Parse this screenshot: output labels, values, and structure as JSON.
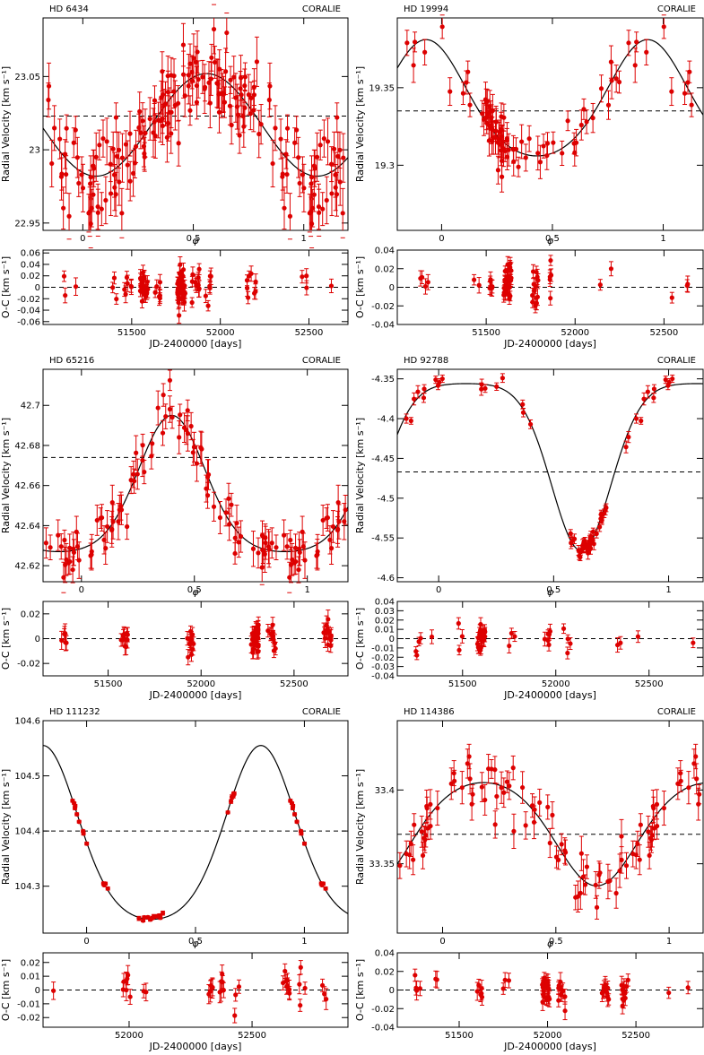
{
  "figure": {
    "background": "#ffffff",
    "point_color": "#dd0000",
    "curve_color": "#000000"
  },
  "stars": [
    {
      "title": "HD 6434",
      "instrument": "CORALIE",
      "rv_panel": {
        "xlabel": "φ",
        "ylabel": "Radial Velocity [km s⁻¹]",
        "xlim": [
          -0.18,
          1.2
        ],
        "ylim": [
          22.945,
          23.09
        ],
        "xticks": [
          0,
          0.5,
          1
        ],
        "xtick_labels": [
          "0",
          "0.5",
          "1"
        ],
        "yticks": [
          22.95,
          23,
          23.05
        ],
        "ytick_labels": [
          "22.95",
          "23",
          "23.05"
        ],
        "gamma": 23.023,
        "model": {
          "min": 22.982,
          "max": 23.052,
          "phase_max": 0.56,
          "asym": 0.0
        },
        "err": 0.013,
        "scatter": 0.016,
        "points_per_cycle": 150,
        "cluster_phases": [],
        "seed": 11
      },
      "oc_panel": {
        "xlabel": "JD-2400000 [days]",
        "ylabel": "O-C [km s⁻¹]",
        "xlim": [
          51000,
          52720
        ],
        "ylim": [
          -0.065,
          0.065
        ],
        "xticks": [
          51500,
          52000,
          52500
        ],
        "xtick_labels": [
          "51500",
          "52000",
          "52500"
        ],
        "yticks": [
          -0.06,
          -0.04,
          -0.02,
          0,
          0.02,
          0.04,
          0.06
        ],
        "ytick_labels": [
          "-0.06",
          "-0.04",
          "-0.02",
          "0",
          "0.02",
          "0.04",
          "0.06"
        ],
        "groups": [
          [
            51130,
            2
          ],
          [
            51180,
            1
          ],
          [
            51400,
            3
          ],
          [
            51480,
            6
          ],
          [
            51570,
            22
          ],
          [
            51640,
            6
          ],
          [
            51780,
            45
          ],
          [
            51860,
            10
          ],
          [
            51930,
            6
          ],
          [
            52160,
            5
          ],
          [
            52210,
            3
          ],
          [
            52470,
            3
          ],
          [
            52640,
            1
          ]
        ],
        "spread": 0.014,
        "err": 0.012,
        "seed": 12
      }
    },
    {
      "title": "HD 19994",
      "instrument": "CORALIE",
      "rv_panel": {
        "xlabel": "φ",
        "ylabel": "Radial Velocity [km s⁻¹]",
        "xlim": [
          -0.2,
          1.18
        ],
        "ylim": [
          19.258,
          19.395
        ],
        "xticks": [
          0,
          0.5,
          1
        ],
        "xtick_labels": [
          "0",
          "0.5",
          "1"
        ],
        "yticks": [
          19.3,
          19.35
        ],
        "ytick_labels": [
          "19.3",
          "19.35"
        ],
        "gamma": 19.335,
        "model": {
          "min": 19.306,
          "max": 19.381,
          "phase_max": 0.93,
          "asym": 0.3
        },
        "err": 0.009,
        "scatter": 0.008,
        "points_per_cycle": 45,
        "cluster_phases": [
          [
            0.25,
            0.05,
            35
          ]
        ],
        "seed": 21
      },
      "oc_panel": {
        "xlabel": "JD-2400000 [days]",
        "ylabel": "O-C [km s⁻¹]",
        "xlim": [
          51000,
          52720
        ],
        "ylim": [
          -0.04,
          0.04
        ],
        "xticks": [
          51500,
          52000,
          52500
        ],
        "xtick_labels": [
          "51500",
          "52000",
          "52500"
        ],
        "yticks": [
          -0.04,
          -0.02,
          0,
          0.02,
          0.04
        ],
        "ytick_labels": [
          "-0.04",
          "-0.02",
          "0",
          "0.02",
          "0.04"
        ],
        "groups": [
          [
            51150,
            3
          ],
          [
            51190,
            1
          ],
          [
            51450,
            2
          ],
          [
            51530,
            6
          ],
          [
            51620,
            28
          ],
          [
            51780,
            14
          ],
          [
            51880,
            5
          ],
          [
            52140,
            1
          ],
          [
            52190,
            1
          ],
          [
            52550,
            1
          ],
          [
            52650,
            2
          ]
        ],
        "spread": 0.009,
        "err": 0.007,
        "seed": 22
      }
    },
    {
      "title": "HD 65216",
      "instrument": "CORALIE",
      "rv_panel": {
        "xlabel": "φ",
        "ylabel": "Radial Velocity [km s⁻¹]",
        "xlim": [
          -0.17,
          1.18
        ],
        "ylim": [
          42.612,
          42.718
        ],
        "xticks": [
          0,
          0.5,
          1
        ],
        "xtick_labels": [
          "0",
          "0.5",
          "1"
        ],
        "yticks": [
          42.62,
          42.64,
          42.66,
          42.68,
          42.7
        ],
        "ytick_labels": [
          "42.62",
          "42.64",
          "42.66",
          "42.68",
          "42.7"
        ],
        "gamma": 42.674,
        "model": {
          "min": 42.627,
          "max": 42.695,
          "phase_max": 0.4,
          "asym": 0.55
        },
        "err": 0.007,
        "scatter": 0.006,
        "points_per_cycle": 90,
        "cluster_phases": [],
        "seed": 31
      },
      "oc_panel": {
        "xlabel": "JD-2400000 [days]",
        "ylabel": "O-C [km s⁻¹]",
        "xlim": [
          51150,
          52790
        ],
        "ylim": [
          -0.03,
          0.03
        ],
        "xticks": [
          51500,
          52000,
          52500
        ],
        "xtick_labels": [
          "51500",
          "52000",
          "52500"
        ],
        "yticks": [
          -0.02,
          0,
          0.02
        ],
        "ytick_labels": [
          "-0.02",
          "0",
          "0.02"
        ],
        "groups": [
          [
            51260,
            6
          ],
          [
            51590,
            10
          ],
          [
            51940,
            12
          ],
          [
            52290,
            30
          ],
          [
            52380,
            10
          ],
          [
            52680,
            14
          ]
        ],
        "spread": 0.006,
        "err": 0.006,
        "seed": 32
      }
    },
    {
      "title": "HD 92788",
      "instrument": "CORALIE",
      "rv_panel": {
        "xlabel": "φ",
        "ylabel": "Radial Velocity [km s⁻¹]",
        "xlim": [
          -0.18,
          1.15
        ],
        "ylim": [
          -4.605,
          -4.338
        ],
        "xticks": [
          0,
          0.5,
          1
        ],
        "xtick_labels": [
          "0",
          "0.5",
          "1"
        ],
        "yticks": [
          -4.6,
          -4.55,
          -4.5,
          -4.45,
          -4.4,
          -4.35
        ],
        "ytick_labels": [
          "-4.6",
          "-4.55",
          "-4.5",
          "-4.45",
          "-4.4",
          "-4.35"
        ],
        "gamma": -4.467,
        "model": {
          "min": -4.566,
          "max": -4.356,
          "phase_max": 0.12,
          "asym": -0.75
        },
        "err": 0.006,
        "scatter": 0.007,
        "points_per_cycle": 25,
        "cluster_phases": [
          [
            0.65,
            0.08,
            35
          ]
        ],
        "seed": 41
      },
      "oc_panel": {
        "xlabel": "JD-2400000 [days]",
        "ylabel": "O-C [km s⁻¹]",
        "xlim": [
          51150,
          52790
        ],
        "ylim": [
          -0.04,
          0.04
        ],
        "xticks": [
          51500,
          52000,
          52500
        ],
        "xtick_labels": [
          "51500",
          "52000",
          "52500"
        ],
        "yticks": [
          -0.04,
          -0.03,
          -0.02,
          -0.01,
          0,
          0.01,
          0.02,
          0.03,
          0.04
        ],
        "ytick_labels": [
          "-0.04",
          "-0.03",
          "-0.02",
          "-0.01",
          "0",
          "0.01",
          "0.02",
          "0.03",
          "0.04"
        ],
        "groups": [
          [
            51260,
            4
          ],
          [
            51350,
            1
          ],
          [
            51480,
            3
          ],
          [
            51600,
            24
          ],
          [
            51760,
            3
          ],
          [
            51960,
            6
          ],
          [
            52060,
            4
          ],
          [
            52340,
            2
          ],
          [
            52450,
            1
          ],
          [
            52730,
            1
          ]
        ],
        "spread": 0.007,
        "err": 0.006,
        "seed": 42
      }
    },
    {
      "title": "HD 111232",
      "instrument": "CORALIE",
      "rv_panel": {
        "xlabel": "φ",
        "ylabel": "Radial Velocity [km s⁻¹]",
        "xlim": [
          -0.2,
          1.2
        ],
        "ylim": [
          104.215,
          104.6
        ],
        "xticks": [
          0,
          0.5,
          1
        ],
        "xtick_labels": [
          "0",
          "0.5",
          "1"
        ],
        "yticks": [
          104.3,
          104.4,
          104.5,
          104.6
        ],
        "ytick_labels": [
          "104.3",
          "104.4",
          "104.5",
          "104.6"
        ],
        "gamma": 104.4,
        "model": {
          "min": 104.24,
          "max": 104.555,
          "phase_max": 0.8,
          "asym": 0.45
        },
        "err": 0.003,
        "scatter": 0.003,
        "points_per_cycle": 0,
        "cluster_phases": [
          [
            -0.04,
            0.05,
            9
          ],
          [
            0.08,
            0.02,
            4
          ],
          [
            0.29,
            0.06,
            12
          ],
          [
            0.66,
            0.03,
            6
          ]
        ],
        "seed": 51
      },
      "oc_panel": {
        "xlabel": "JD-2400000 [days]",
        "ylabel": "O-C [km s⁻¹]",
        "xlim": [
          51650,
          52890
        ],
        "ylim": [
          -0.027,
          0.027
        ],
        "xticks": [
          52000,
          52500
        ],
        "xtick_labels": [
          "52000",
          "52500"
        ],
        "yticks": [
          -0.02,
          -0.01,
          0,
          0.01,
          0.02
        ],
        "ytick_labels": [
          "-0.02",
          "-0.01",
          "0",
          "0.01",
          "0.02"
        ],
        "groups": [
          [
            51700,
            1
          ],
          [
            51990,
            7
          ],
          [
            52070,
            2
          ],
          [
            52330,
            6
          ],
          [
            52380,
            6
          ],
          [
            52440,
            3
          ],
          [
            52640,
            8
          ],
          [
            52700,
            4
          ],
          [
            52800,
            3
          ]
        ],
        "spread": 0.006,
        "err": 0.006,
        "seed": 52
      }
    },
    {
      "title": "HD 114386",
      "instrument": "CORALIE",
      "rv_panel": {
        "xlabel": "φ",
        "ylabel": "Radial Velocity [km s⁻¹]",
        "xlim": [
          -0.2,
          1.15
        ],
        "ylim": [
          33.303,
          33.447
        ],
        "xticks": [
          0,
          0.5,
          1
        ],
        "xtick_labels": [
          "0",
          "0.5",
          "1"
        ],
        "yticks": [
          33.35,
          33.4
        ],
        "ytick_labels": [
          "33.35",
          "33.4"
        ],
        "gamma": 33.37,
        "model": {
          "min": 33.335,
          "max": 33.405,
          "phase_max": 0.18,
          "asym": -0.3
        },
        "err": 0.009,
        "scatter": 0.012,
        "points_per_cycle": 70,
        "cluster_phases": [],
        "seed": 61
      },
      "oc_panel": {
        "xlabel": "JD-2400000 [days]",
        "ylabel": "O-C [km s⁻¹]",
        "xlim": [
          51150,
          52880
        ],
        "ylim": [
          -0.04,
          0.04
        ],
        "xticks": [
          51500,
          52000,
          52500
        ],
        "xtick_labels": [
          "51500",
          "52000",
          "52500"
        ],
        "yticks": [
          -0.04,
          -0.02,
          0,
          0.02,
          0.04
        ],
        "ytick_labels": [
          "-0.04",
          "-0.02",
          "0",
          "0.02",
          "0.04"
        ],
        "groups": [
          [
            51270,
            4
          ],
          [
            51380,
            2
          ],
          [
            51620,
            6
          ],
          [
            51770,
            3
          ],
          [
            51990,
            20
          ],
          [
            52080,
            10
          ],
          [
            52330,
            10
          ],
          [
            52440,
            12
          ],
          [
            52680,
            1
          ],
          [
            52790,
            1
          ]
        ],
        "spread": 0.009,
        "err": 0.008,
        "seed": 62
      }
    }
  ],
  "chart_data": [
    {
      "type": "scatter",
      "title": "HD 6434",
      "xlabel": "φ",
      "ylabel": "Radial Velocity [km s⁻¹]",
      "xlim": [
        -0.18,
        1.2
      ],
      "ylim": [
        22.945,
        23.09
      ],
      "series": [
        {
          "name": "Keplerian fit",
          "min": 22.982,
          "max": 23.052
        },
        {
          "name": "systemic velocity",
          "values": [
            23.023
          ]
        }
      ]
    },
    {
      "type": "scatter",
      "title": "HD 6434",
      "xlabel": "JD-2400000 [days]",
      "ylabel": "O-C [km s⁻¹]",
      "xlim": [
        51000,
        52720
      ],
      "ylim": [
        -0.065,
        0.065
      ]
    },
    {
      "type": "scatter",
      "title": "HD 19994",
      "xlabel": "φ",
      "ylabel": "Radial Velocity [km s⁻¹]",
      "xlim": [
        -0.2,
        1.18
      ],
      "ylim": [
        19.258,
        19.395
      ],
      "series": [
        {
          "name": "Keplerian fit",
          "min": 19.306,
          "max": 19.381
        },
        {
          "name": "systemic velocity",
          "values": [
            19.335
          ]
        }
      ]
    },
    {
      "type": "scatter",
      "title": "HD 19994",
      "xlabel": "JD-2400000 [days]",
      "ylabel": "O-C [km s⁻¹]",
      "xlim": [
        51000,
        52720
      ],
      "ylim": [
        -0.04,
        0.04
      ]
    },
    {
      "type": "scatter",
      "title": "HD 65216",
      "xlabel": "φ",
      "ylabel": "Radial Velocity [km s⁻¹]",
      "xlim": [
        -0.17,
        1.18
      ],
      "ylim": [
        42.612,
        42.718
      ],
      "series": [
        {
          "name": "Keplerian fit",
          "min": 42.627,
          "max": 42.695
        },
        {
          "name": "systemic velocity",
          "values": [
            42.674
          ]
        }
      ]
    },
    {
      "type": "scatter",
      "title": "HD 65216",
      "xlabel": "JD-2400000 [days]",
      "ylabel": "O-C [km s⁻¹]",
      "xlim": [
        51150,
        52790
      ],
      "ylim": [
        -0.03,
        0.03
      ]
    },
    {
      "type": "scatter",
      "title": "HD 92788",
      "xlabel": "φ",
      "ylabel": "Radial Velocity [km s⁻¹]",
      "xlim": [
        -0.18,
        1.15
      ],
      "ylim": [
        -4.605,
        -4.338
      ],
      "series": [
        {
          "name": "Keplerian fit",
          "min": -4.566,
          "max": -4.356
        },
        {
          "name": "systemic velocity",
          "values": [
            -4.467
          ]
        }
      ]
    },
    {
      "type": "scatter",
      "title": "HD 92788",
      "xlabel": "JD-2400000 [days]",
      "ylabel": "O-C [km s⁻¹]",
      "xlim": [
        51150,
        52790
      ],
      "ylim": [
        -0.04,
        0.04
      ]
    },
    {
      "type": "scatter",
      "title": "HD 111232",
      "xlabel": "φ",
      "ylabel": "Radial Velocity [km s⁻¹]",
      "xlim": [
        -0.2,
        1.2
      ],
      "ylim": [
        104.215,
        104.6
      ],
      "series": [
        {
          "name": "Keplerian fit",
          "min": 104.24,
          "max": 104.555
        },
        {
          "name": "systemic velocity",
          "values": [
            104.4
          ]
        }
      ]
    },
    {
      "type": "scatter",
      "title": "HD 111232",
      "xlabel": "JD-2400000 [days]",
      "ylabel": "O-C [km s⁻¹]",
      "xlim": [
        51650,
        52890
      ],
      "ylim": [
        -0.027,
        0.027
      ]
    },
    {
      "type": "scatter",
      "title": "HD 114386",
      "xlabel": "φ",
      "ylabel": "Radial Velocity [km s⁻¹]",
      "xlim": [
        -0.2,
        1.15
      ],
      "ylim": [
        33.303,
        33.447
      ],
      "series": [
        {
          "name": "Keplerian fit",
          "min": 33.335,
          "max": 33.405
        },
        {
          "name": "systemic velocity",
          "values": [
            33.37
          ]
        }
      ]
    },
    {
      "type": "scatter",
      "title": "HD 114386",
      "xlabel": "JD-2400000 [days]",
      "ylabel": "O-C [km s⁻¹]",
      "xlim": [
        51150,
        52880
      ],
      "ylim": [
        -0.04,
        0.04
      ]
    }
  ]
}
